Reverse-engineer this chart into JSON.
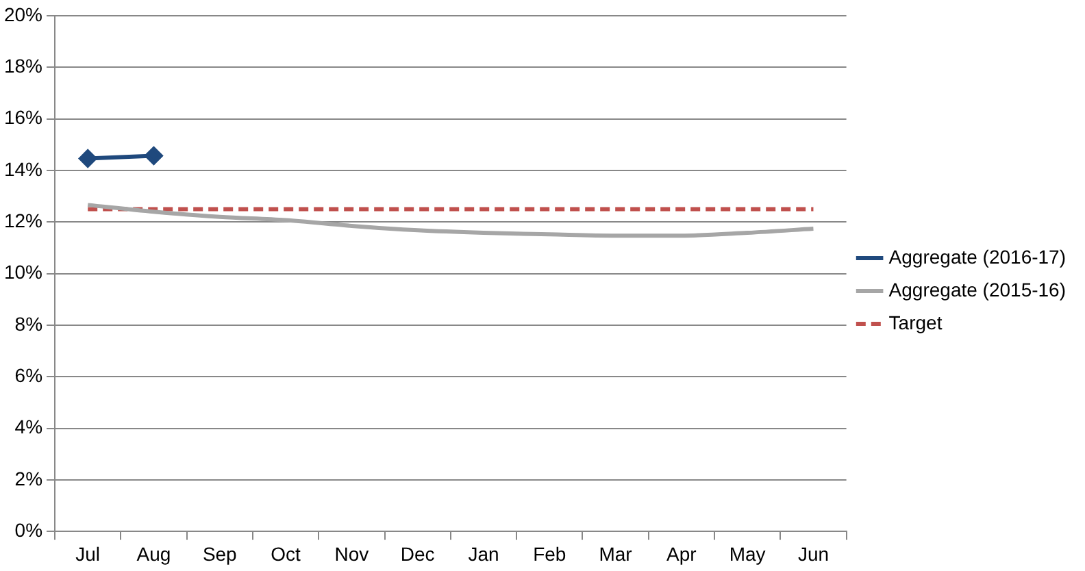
{
  "chart_data": {
    "type": "line",
    "categories": [
      "Jul",
      "Aug",
      "Sep",
      "Oct",
      "Nov",
      "Dec",
      "Jan",
      "Feb",
      "Mar",
      "Apr",
      "May",
      "Jun"
    ],
    "series": [
      {
        "name": "Aggregate (2016-17)",
        "color": "#1f497d",
        "marker": "diamond",
        "values": [
          14.46,
          14.57,
          null,
          null,
          null,
          null,
          null,
          null,
          null,
          null,
          null,
          null
        ]
      },
      {
        "name": "Aggregate (2015-16)",
        "color": "#a6a6a6",
        "marker": "none",
        "values": [
          12.66,
          12.4,
          12.2,
          12.07,
          11.85,
          11.68,
          11.58,
          11.52,
          11.47,
          11.47,
          11.58,
          11.74
        ]
      },
      {
        "name": "Target",
        "color": "#c0504d",
        "marker": "none",
        "line_style": "dashed",
        "values": [
          12.5,
          12.5,
          12.5,
          12.5,
          12.5,
          12.5,
          12.5,
          12.5,
          12.5,
          12.5,
          12.5,
          12.5
        ]
      }
    ],
    "ylim": [
      0,
      20
    ],
    "yticks": [
      {
        "value": 0,
        "label": "0%"
      },
      {
        "value": 2,
        "label": "2%"
      },
      {
        "value": 4,
        "label": "4%"
      },
      {
        "value": 6,
        "label": "6%"
      },
      {
        "value": 8,
        "label": "8%"
      },
      {
        "value": 10,
        "label": "10%"
      },
      {
        "value": 12,
        "label": "12%"
      },
      {
        "value": 14,
        "label": "14%"
      },
      {
        "value": 16,
        "label": "16%"
      },
      {
        "value": 18,
        "label": "18%"
      },
      {
        "value": 20,
        "label": "20%"
      }
    ],
    "grid": "y",
    "legend": "right"
  }
}
